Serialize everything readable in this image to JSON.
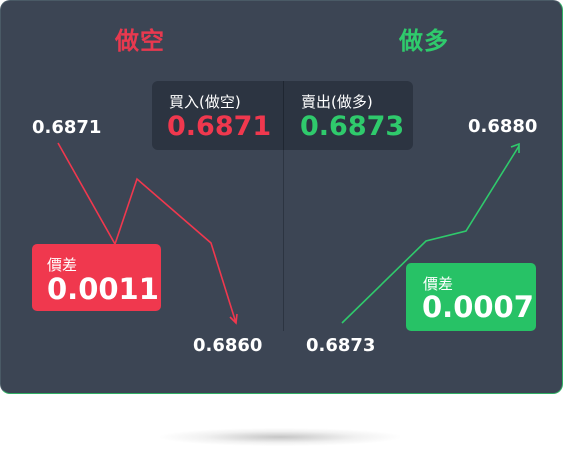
{
  "short_side": {
    "title": "做空",
    "entry_price": "0.6871",
    "exit_price": "0.6860",
    "spread_label": "價差",
    "spread_value": "0.0011",
    "color": "#f0384e"
  },
  "long_side": {
    "title": "做多",
    "entry_price": "0.6873",
    "exit_price": "0.6880",
    "spread_label": "價差",
    "spread_value": "0.0007",
    "color": "#2fca6c"
  },
  "quote": {
    "buy_label": "買入(做空)",
    "buy_price": "0.6871",
    "sell_label": "賣出(做多)",
    "sell_price": "0.6873"
  },
  "icons": {
    "short_arrow": "arrow-down-right-icon",
    "long_arrow": "arrow-up-right-icon"
  }
}
